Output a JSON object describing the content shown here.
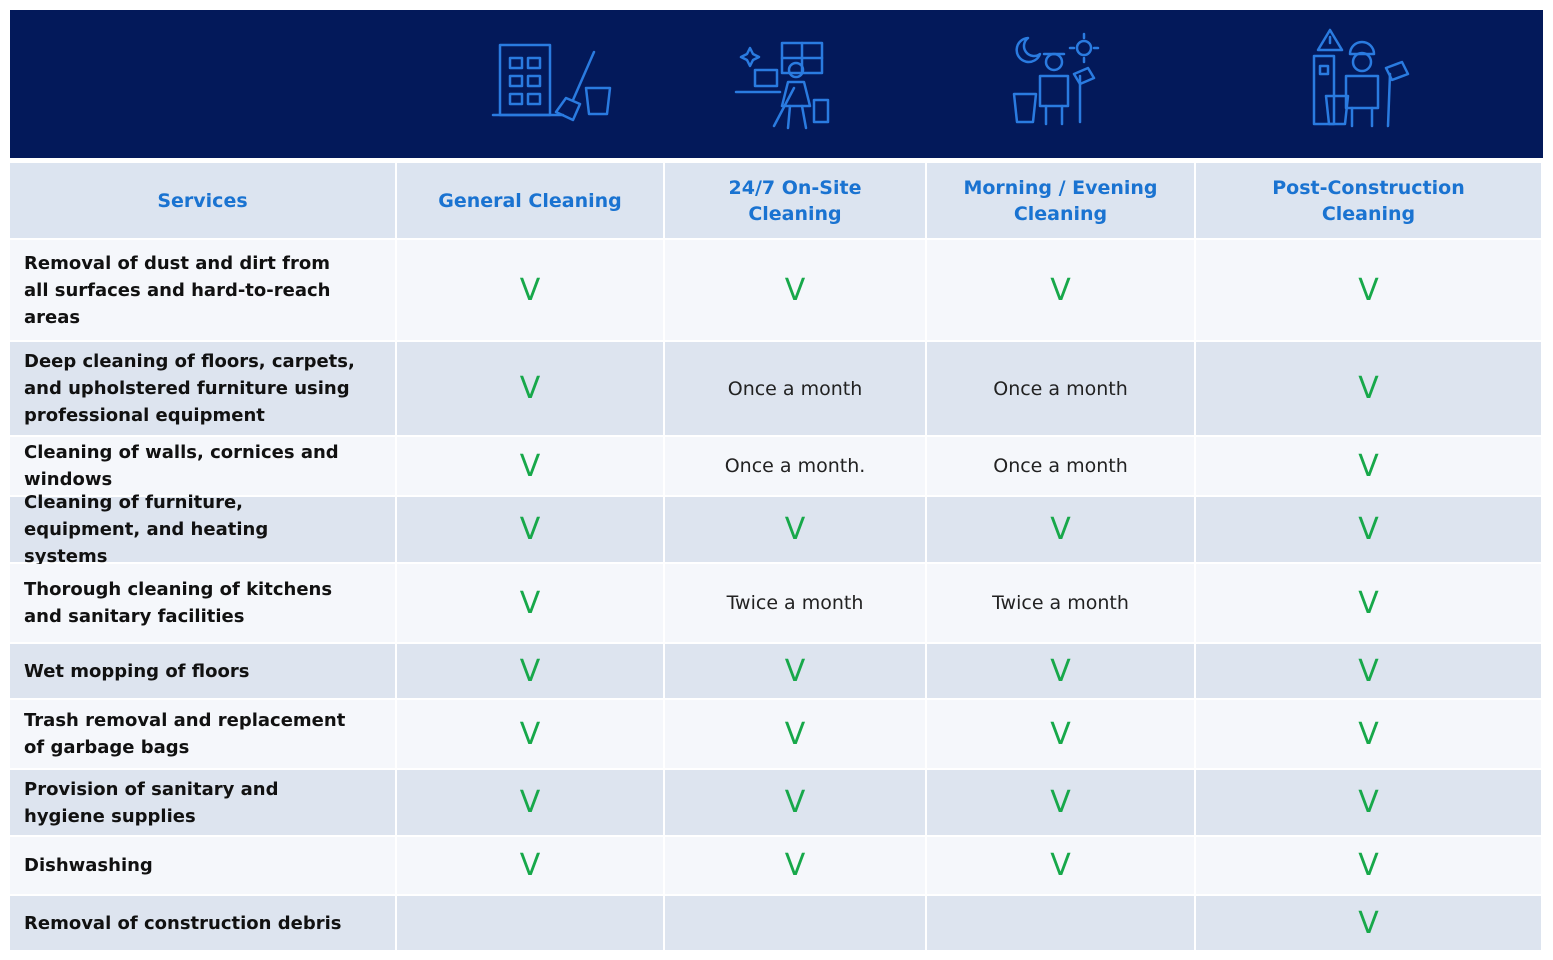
{
  "table": {
    "columns": [
      "Services",
      "General Cleaning",
      "24/7 On-Site Cleaning",
      "Morning / Evening Cleaning",
      "Post-Construction Cleaning"
    ],
    "rows": [
      {
        "service": "Removal of dust and dirt from all surfaces and hard-to-reach areas",
        "cells": [
          "V",
          "V",
          "V",
          "V"
        ]
      },
      {
        "service": "Deep cleaning of floors, carpets, and upholstered furniture using professional equipment",
        "cells": [
          "V",
          "Once a month",
          "Once a month",
          "V"
        ]
      },
      {
        "service": "Cleaning of walls, cornices and windows",
        "cells": [
          "V",
          "Once a month.",
          "Once a month",
          "V"
        ]
      },
      {
        "service": "Cleaning of furniture, equipment, and heating systems",
        "cells": [
          "V",
          "V",
          "V",
          "V"
        ]
      },
      {
        "service": "Thorough cleaning of kitchens and sanitary facilities",
        "cells": [
          "V",
          "Twice a month",
          "Twice a month",
          "V"
        ]
      },
      {
        "service": "Wet mopping of floors",
        "cells": [
          "V",
          "V",
          "V",
          "V"
        ]
      },
      {
        "service": "Trash removal and replacement of garbage bags",
        "cells": [
          "V",
          "V",
          "V",
          "V"
        ]
      },
      {
        "service": "Provision of sanitary and hygiene supplies",
        "cells": [
          "V",
          "V",
          "V",
          "V"
        ]
      },
      {
        "service": "Dishwashing",
        "cells": [
          "V",
          "V",
          "V",
          "V"
        ]
      },
      {
        "service": "Removal of construction debris",
        "cells": [
          null,
          null,
          null,
          "V"
        ]
      }
    ]
  }
}
